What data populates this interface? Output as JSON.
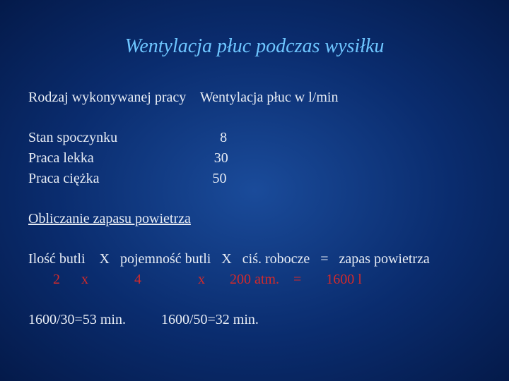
{
  "colors": {
    "title": "#6ec6ff",
    "body": "#e8edf5",
    "accent": "#d42a2a",
    "bg_center": "#1a4b9a",
    "bg_mid": "#0a2c6e",
    "bg_edge": "#041a4a"
  },
  "title": "Wentylacja płuc podczas wysiłku",
  "header_col1": "Rodzaj wykonywanej pracy",
  "header_col2": "Wentylacja płuc w l/min",
  "rows": [
    {
      "label": "Stan spoczynku",
      "value": "  8"
    },
    {
      "label": "Praca lekka",
      "value": "30"
    },
    {
      "label": "Praca ciężka",
      "value": "50"
    }
  ],
  "section2_title": "Obliczanie zapasu powietrza",
  "formula_text": {
    "p1": "Ilość butli    X   pojemność butli   X   ciś. robocze   =   zapas powietrza"
  },
  "formula_vals": {
    "p1": "       2      x             4                x       200 atm.    =       1600 l"
  },
  "results": "1600/30=53 min.          1600/50=32 min."
}
